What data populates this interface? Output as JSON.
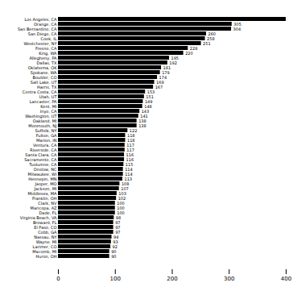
{
  "chart_data": {
    "type": "bar",
    "orientation": "horizontal",
    "categories": [
      "Los Angeles, CA",
      "Orange, CA",
      "San Bernardino, CA",
      "San Diego, CA",
      "Cook, IL",
      "Westchester, NY",
      "Fresno, CA",
      "King, WA",
      "Allegheny, PA",
      "Dallas, TX",
      "Oklahoma, OK",
      "Spokane, WA",
      "Boulder, CO",
      "Salt Lake, UT",
      "Harris, TX",
      "Contra Costa, CA",
      "Utah, UT",
      "Lancaster, PA",
      "Kent, MI",
      "Inyo, CA",
      "Washington, UT",
      "Oakland, MI",
      "Monmouth, NJ",
      "Suffolk, NY",
      "Fulton, GA",
      "Marion, IN",
      "Ventura, CA",
      "Riverside, CA",
      "Santa Clara, CA",
      "Sacramento, CA",
      "Tuolumne, CA",
      "Onslow, NC",
      "Milwaukee, WI",
      "Hennepin, MN",
      "Jasper, MO",
      "Jackson, MI",
      "Middlesex, MA",
      "Franklin, OH",
      "Clark, NV",
      "Maricopa, AZ",
      "Dade, FL",
      "Virginia Beach, VA",
      "Broward, FL",
      "El Paso, CO",
      "Cobb, GA",
      "Nassau, NY",
      "Wayne, MI",
      "Larimer, CO",
      "Macomb, MI",
      "Huron, OH"
    ],
    "values": [
      400,
      305,
      304,
      260,
      258,
      251,
      228,
      220,
      195,
      192,
      181,
      179,
      174,
      169,
      167,
      153,
      151,
      149,
      148,
      143,
      141,
      138,
      138,
      122,
      118,
      118,
      117,
      117,
      116,
      116,
      115,
      114,
      114,
      113,
      108,
      107,
      103,
      102,
      100,
      100,
      100,
      98,
      97,
      97,
      97,
      94,
      93,
      92,
      90,
      90
    ],
    "data_labels": true,
    "value_labels": [
      null,
      "305",
      "304",
      "260",
      "258",
      "251",
      "228",
      "220",
      "195",
      "192",
      "181",
      "179",
      "174",
      "169",
      "167",
      "153",
      "151",
      "149",
      "148",
      "143",
      "141",
      "138",
      "138",
      "122",
      "118",
      "118",
      "117",
      "117",
      "116",
      "116",
      "115",
      "114",
      "114",
      "113",
      "108",
      "107",
      "103",
      "102",
      "100",
      "100",
      "100",
      "98",
      "97",
      "97",
      "97",
      "94",
      "93",
      "92",
      "90",
      "90"
    ],
    "color": "#000000",
    "xlim": [
      0,
      400
    ],
    "xticks": [
      0,
      100,
      200,
      300,
      400
    ]
  }
}
